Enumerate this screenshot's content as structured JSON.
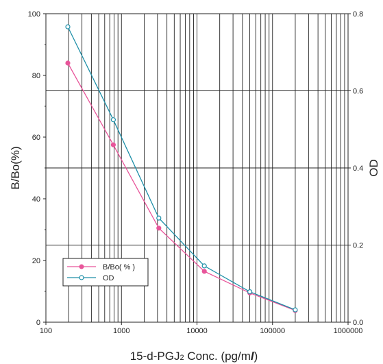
{
  "chart_data": {
    "type": "line",
    "xlabel_main": "15-d-PGJ",
    "xlabel_sub": "2",
    "xlabel_rest": " Conc. (pg/m",
    "xlabel_unit": "l",
    "xlabel_close": ")",
    "ylabel": "B/Bo(%)",
    "y2label": "OD",
    "xscale": "log",
    "xlim": [
      100,
      1000000
    ],
    "ylim": [
      0,
      100
    ],
    "y2lim": [
      0,
      0.8
    ],
    "grid": true,
    "legend_placement": "lower-left",
    "x_tick_labels": [
      "100",
      "1000",
      "10000",
      "100000",
      "1000000"
    ],
    "y_tick_labels": [
      "0",
      "20",
      "40",
      "60",
      "80",
      "100"
    ],
    "y2_tick_labels": [
      "0.0",
      "0.2",
      "0.4",
      "0.6",
      "0.8"
    ],
    "series": [
      {
        "name": "B/Bo( % )",
        "axis": "left",
        "color": "#e8559a",
        "marker": "filled-circle",
        "x": [
          195,
          780,
          3125,
          12500,
          50000,
          200000
        ],
        "y": [
          84,
          57.5,
          30.5,
          16.5,
          9.5,
          3.8
        ]
      },
      {
        "name": "OD",
        "axis": "right",
        "color": "#1e8fa8",
        "marker": "open-circle",
        "x": [
          195,
          780,
          3125,
          12500,
          50000,
          200000
        ],
        "y": [
          0.766,
          0.525,
          0.27,
          0.146,
          0.079,
          0.032
        ]
      }
    ]
  }
}
